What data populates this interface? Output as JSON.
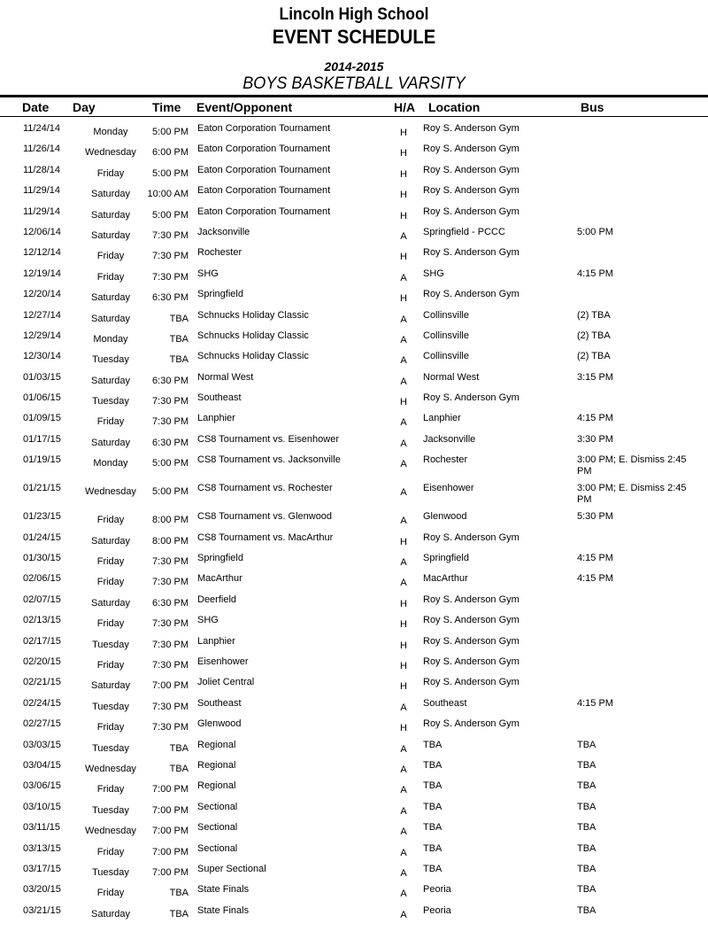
{
  "header": {
    "school": "Lincoln High School",
    "title": "EVENT SCHEDULE",
    "season": "2014-2015",
    "team": "BOYS BASKETBALL VARSITY"
  },
  "columns": {
    "date": "Date",
    "day": "Day",
    "time": "Time",
    "event": "Event/Opponent",
    "ha": "H/A",
    "location": "Location",
    "bus": "Bus"
  },
  "rows": [
    {
      "date": "11/24/14",
      "day": "Monday",
      "time": "5:00 PM",
      "event": "Eaton Corporation Tournament",
      "ha": "H",
      "location": "Roy S. Anderson Gym",
      "bus": ""
    },
    {
      "date": "11/26/14",
      "day": "Wednesday",
      "time": "6:00 PM",
      "event": "Eaton Corporation Tournament",
      "ha": "H",
      "location": "Roy S. Anderson Gym",
      "bus": ""
    },
    {
      "date": "11/28/14",
      "day": "Friday",
      "time": "5:00 PM",
      "event": "Eaton Corporation Tournament",
      "ha": "H",
      "location": "Roy S. Anderson Gym",
      "bus": ""
    },
    {
      "date": "11/29/14",
      "day": "Saturday",
      "time": "10:00 AM",
      "event": "Eaton Corporation Tournament",
      "ha": "H",
      "location": "Roy S. Anderson Gym",
      "bus": ""
    },
    {
      "date": "11/29/14",
      "day": "Saturday",
      "time": "5:00 PM",
      "event": "Eaton Corporation Tournament",
      "ha": "H",
      "location": "Roy S. Anderson Gym",
      "bus": ""
    },
    {
      "date": "12/06/14",
      "day": "Saturday",
      "time": "7:30 PM",
      "event": "Jacksonville",
      "ha": "A",
      "location": "Springfield - PCCC",
      "bus": "5:00 PM"
    },
    {
      "date": "12/12/14",
      "day": "Friday",
      "time": "7:30 PM",
      "event": "Rochester",
      "ha": "H",
      "location": "Roy S. Anderson Gym",
      "bus": ""
    },
    {
      "date": "12/19/14",
      "day": "Friday",
      "time": "7:30 PM",
      "event": "SHG",
      "ha": "A",
      "location": "SHG",
      "bus": "4:15 PM"
    },
    {
      "date": "12/20/14",
      "day": "Saturday",
      "time": "6:30 PM",
      "event": "Springfield",
      "ha": "H",
      "location": "Roy S. Anderson Gym",
      "bus": ""
    },
    {
      "date": "12/27/14",
      "day": "Saturday",
      "time": "TBA",
      "event": "Schnucks Holiday Classic",
      "ha": "A",
      "location": "Collinsville",
      "bus": "(2)  TBA"
    },
    {
      "date": "12/29/14",
      "day": "Monday",
      "time": "TBA",
      "event": "Schnucks Holiday Classic",
      "ha": "A",
      "location": "Collinsville",
      "bus": "(2)  TBA"
    },
    {
      "date": "12/30/14",
      "day": "Tuesday",
      "time": "TBA",
      "event": "Schnucks Holiday Classic",
      "ha": "A",
      "location": "Collinsville",
      "bus": "(2)  TBA"
    },
    {
      "date": "01/03/15",
      "day": "Saturday",
      "time": "6:30 PM",
      "event": "Normal West",
      "ha": "A",
      "location": "Normal West",
      "bus": "3:15 PM"
    },
    {
      "date": "01/06/15",
      "day": "Tuesday",
      "time": "7:30 PM",
      "event": "Southeast",
      "ha": "H",
      "location": "Roy S. Anderson Gym",
      "bus": ""
    },
    {
      "date": "01/09/15",
      "day": "Friday",
      "time": "7:30 PM",
      "event": "Lanphier",
      "ha": "A",
      "location": "Lanphier",
      "bus": "4:15 PM"
    },
    {
      "date": "01/17/15",
      "day": "Saturday",
      "time": "6:30 PM",
      "event": "CS8 Tournament vs. Eisenhower",
      "ha": "A",
      "location": "Jacksonville",
      "bus": "3:30 PM"
    },
    {
      "date": "01/19/15",
      "day": "Monday",
      "time": "5:00 PM",
      "event": "CS8 Tournament vs. Jacksonville",
      "ha": "A",
      "location": "Rochester",
      "bus": "3:00 PM; E. Dismiss 2:45 PM"
    },
    {
      "date": "01/21/15",
      "day": "Wednesday",
      "time": "5:00 PM",
      "event": "CS8 Tournament vs. Rochester",
      "ha": "A",
      "location": "Eisenhower",
      "bus": "3:00 PM; E. Dismiss 2:45 PM"
    },
    {
      "date": "01/23/15",
      "day": "Friday",
      "time": "8:00 PM",
      "event": "CS8 Tournament vs. Glenwood",
      "ha": "A",
      "location": "Glenwood",
      "bus": "5:30 PM"
    },
    {
      "date": "01/24/15",
      "day": "Saturday",
      "time": "8:00 PM",
      "event": "CS8 Tournament vs. MacArthur",
      "ha": "H",
      "location": "Roy S. Anderson Gym",
      "bus": ""
    },
    {
      "date": "01/30/15",
      "day": "Friday",
      "time": "7:30 PM",
      "event": "Springfield",
      "ha": "A",
      "location": "Springfield",
      "bus": "4:15 PM"
    },
    {
      "date": "02/06/15",
      "day": "Friday",
      "time": "7:30 PM",
      "event": "MacArthur",
      "ha": "A",
      "location": "MacArthur",
      "bus": "4:15 PM"
    },
    {
      "date": "02/07/15",
      "day": "Saturday",
      "time": "6:30 PM",
      "event": "Deerfield",
      "ha": "H",
      "location": "Roy S. Anderson Gym",
      "bus": ""
    },
    {
      "date": "02/13/15",
      "day": "Friday",
      "time": "7:30 PM",
      "event": "SHG",
      "ha": "H",
      "location": "Roy S. Anderson Gym",
      "bus": ""
    },
    {
      "date": "02/17/15",
      "day": "Tuesday",
      "time": "7:30 PM",
      "event": "Lanphier",
      "ha": "H",
      "location": "Roy S. Anderson Gym",
      "bus": ""
    },
    {
      "date": "02/20/15",
      "day": "Friday",
      "time": "7:30 PM",
      "event": "Eisenhower",
      "ha": "H",
      "location": "Roy S. Anderson Gym",
      "bus": ""
    },
    {
      "date": "02/21/15",
      "day": "Saturday",
      "time": "7:00 PM",
      "event": "Joliet Central",
      "ha": "H",
      "location": "Roy S. Anderson Gym",
      "bus": ""
    },
    {
      "date": "02/24/15",
      "day": "Tuesday",
      "time": "7:30 PM",
      "event": "Southeast",
      "ha": "A",
      "location": "Southeast",
      "bus": "4:15 PM"
    },
    {
      "date": "02/27/15",
      "day": "Friday",
      "time": "7:30 PM",
      "event": "Glenwood",
      "ha": "H",
      "location": "Roy S. Anderson Gym",
      "bus": ""
    },
    {
      "date": "03/03/15",
      "day": "Tuesday",
      "time": "TBA",
      "event": "Regional",
      "ha": "A",
      "location": "TBA",
      "bus": "TBA"
    },
    {
      "date": "03/04/15",
      "day": "Wednesday",
      "time": "TBA",
      "event": "Regional",
      "ha": "A",
      "location": "TBA",
      "bus": "TBA"
    },
    {
      "date": "03/06/15",
      "day": "Friday",
      "time": "7:00 PM",
      "event": "Regional",
      "ha": "A",
      "location": "TBA",
      "bus": "TBA"
    },
    {
      "date": "03/10/15",
      "day": "Tuesday",
      "time": "7:00 PM",
      "event": "Sectional",
      "ha": "A",
      "location": "TBA",
      "bus": "TBA"
    },
    {
      "date": "03/11/15",
      "day": "Wednesday",
      "time": "7:00 PM",
      "event": "Sectional",
      "ha": "A",
      "location": "TBA",
      "bus": "TBA"
    },
    {
      "date": "03/13/15",
      "day": "Friday",
      "time": "7:00 PM",
      "event": "Sectional",
      "ha": "A",
      "location": "TBA",
      "bus": "TBA"
    },
    {
      "date": "03/17/15",
      "day": "Tuesday",
      "time": "7:00 PM",
      "event": "Super Sectional",
      "ha": "A",
      "location": "TBA",
      "bus": "TBA"
    },
    {
      "date": "03/20/15",
      "day": "Friday",
      "time": "TBA",
      "event": "State Finals",
      "ha": "A",
      "location": "Peoria",
      "bus": "TBA"
    },
    {
      "date": "03/21/15",
      "day": "Saturday",
      "time": "TBA",
      "event": "State Finals",
      "ha": "A",
      "location": "Peoria",
      "bus": "TBA"
    }
  ]
}
